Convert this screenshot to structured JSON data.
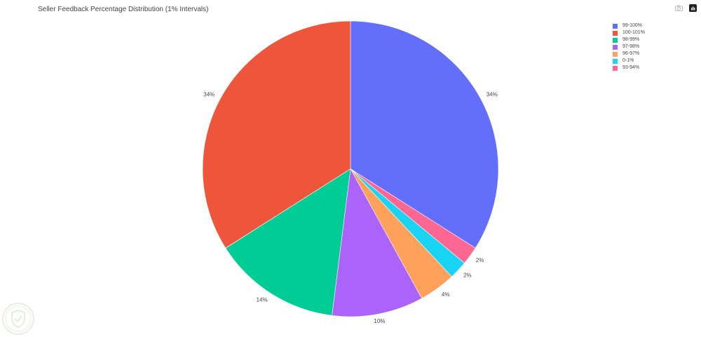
{
  "chart_data": {
    "type": "pie",
    "title": "Seller Feedback Percentage Distribution (1% Intervals)",
    "slices": [
      {
        "label": "99-100%",
        "value": 34,
        "percent_label": "34%",
        "color": "#636efa"
      },
      {
        "label": "100-101%",
        "value": 34,
        "percent_label": "34%",
        "color": "#ef553b"
      },
      {
        "label": "98-99%",
        "value": 14,
        "percent_label": "14%",
        "color": "#00cc96"
      },
      {
        "label": "97-98%",
        "value": 10,
        "percent_label": "10%",
        "color": "#ab63fa"
      },
      {
        "label": "96-97%",
        "value": 4,
        "percent_label": "4%",
        "color": "#ffa15a"
      },
      {
        "label": "0-1%",
        "value": 2,
        "percent_label": "2%",
        "color": "#19d3f3"
      },
      {
        "label": "93-94%",
        "value": 2,
        "percent_label": "2%",
        "color": "#ff6692"
      }
    ],
    "drawing_order": [
      "99-100%",
      "93-94%",
      "0-1%",
      "96-97%",
      "97-98%",
      "98-99%",
      "100-101%"
    ],
    "direction": "clockwise",
    "start": "top",
    "legend_position": "top-right"
  },
  "toolbar": {
    "camera_icon": "camera-icon",
    "plotly_icon": "plotly-logo-icon"
  },
  "watermark": {
    "icon": "shield-logo"
  }
}
